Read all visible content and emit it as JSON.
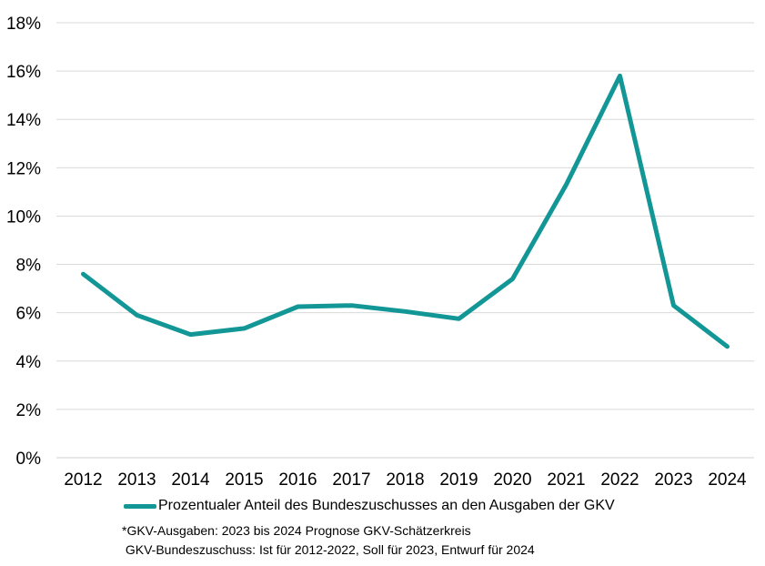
{
  "chart_data": {
    "type": "line",
    "categories": [
      "2012",
      "2013",
      "2014",
      "2015",
      "2016",
      "2017",
      "2018",
      "2019",
      "2020",
      "2021",
      "2022",
      "2023",
      "2024"
    ],
    "series": [
      {
        "name": "Prozentualer Anteil des Bundeszuschusses an den Ausgaben der GKV",
        "values": [
          7.6,
          5.9,
          5.1,
          5.35,
          6.25,
          6.3,
          6.05,
          5.75,
          7.4,
          11.3,
          15.8,
          6.3,
          4.6
        ],
        "color": "#139696"
      }
    ],
    "ylim": [
      0,
      18
    ],
    "yticks": [
      0,
      2,
      4,
      6,
      8,
      10,
      12,
      14,
      16,
      18
    ],
    "ytick_labels": [
      "0%",
      "2%",
      "4%",
      "6%",
      "8%",
      "10%",
      "12%",
      "14%",
      "16%",
      "18%"
    ],
    "grid": true,
    "legend_position": "bottom",
    "footnotes": [
      "*GKV-Ausgaben: 2023 bis 2024 Prognose GKV-Schätzerkreis",
      " GKV-Bundeszuschuss: Ist für 2012-2022, Soll für 2023, Entwurf für 2024"
    ]
  }
}
